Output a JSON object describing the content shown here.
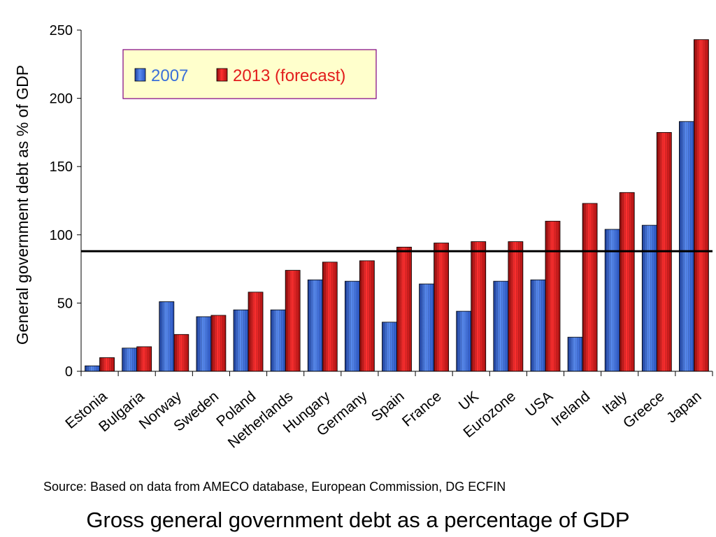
{
  "chart_data": {
    "type": "bar",
    "categories": [
      "Estonia",
      "Bulgaria",
      "Norway",
      "Sweden",
      "Poland",
      "Netherlands",
      "Hungary",
      "Germany",
      "Spain",
      "France",
      "UK",
      "Eurozone",
      "USA",
      "Ireland",
      "Italy",
      "Greece",
      "Japan"
    ],
    "series": [
      {
        "name": "2007",
        "color": "#3a6fd8",
        "values": [
          4,
          17,
          51,
          40,
          45,
          45,
          67,
          66,
          36,
          64,
          44,
          66,
          67,
          25,
          104,
          107,
          183
        ]
      },
      {
        "name": "2013 (forecast)",
        "color": "#e21c1c",
        "values": [
          10,
          18,
          27,
          41,
          58,
          74,
          80,
          81,
          91,
          94,
          95,
          95,
          110,
          123,
          131,
          175,
          243
        ]
      }
    ],
    "ylabel": "General government debt as % of GDP",
    "ylim": [
      0,
      250
    ],
    "yticks": [
      0,
      50,
      100,
      150,
      200,
      250
    ],
    "reference_line": 88,
    "legend": {
      "position": "top-left",
      "box_fill": "#ffffcc",
      "box_border": "#800080"
    },
    "grid": false
  },
  "source": "Source: Based on data from AMECO database, European Commission, DG ECFIN",
  "caption": "Gross general government debt as a percentage of GDP"
}
